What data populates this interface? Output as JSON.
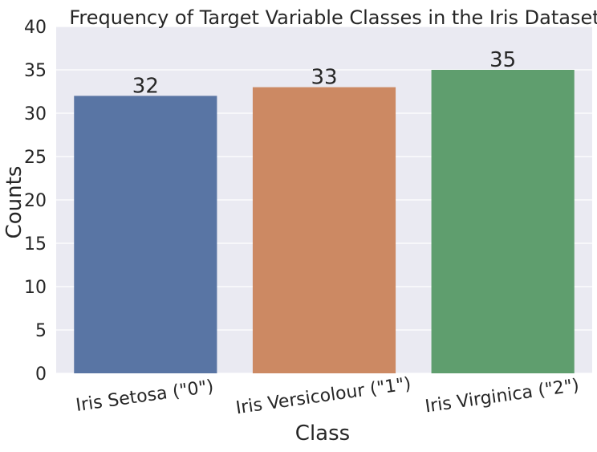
{
  "chart_data": {
    "type": "bar",
    "title": "Frequency of Target Variable Classes in the Iris Dataset",
    "xlabel": "Class",
    "ylabel": "Counts",
    "categories": [
      "Iris Setosa (\"0\")",
      "Iris Versicolour (\"1\")",
      "Iris Virginica (\"2\")"
    ],
    "values": [
      32,
      33,
      35
    ],
    "data_labels": [
      "32",
      "33",
      "35"
    ],
    "ylim": [
      0,
      40
    ],
    "yticks": [
      0,
      5,
      10,
      15,
      20,
      25,
      30,
      35,
      40
    ],
    "colors": [
      "#5975a4",
      "#cc8963",
      "#5f9e6e"
    ],
    "plot_background": "#eaeaf2",
    "grid_color": "#ffffff",
    "grid": true,
    "x_tick_rotation_deg": -8,
    "legend": "none"
  }
}
